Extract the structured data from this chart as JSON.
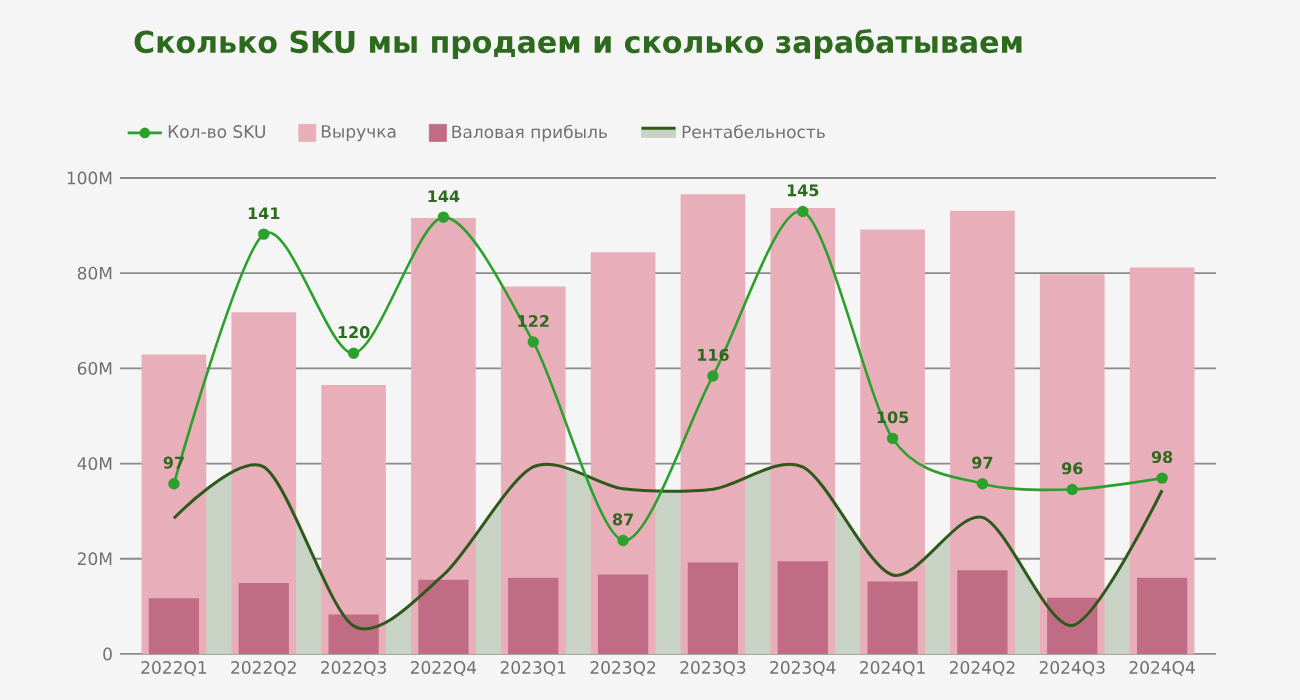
{
  "chart_data": {
    "type": "bar",
    "title": "Сколько SKU мы продаем и сколько зарабатываем",
    "categories": [
      "2022Q1",
      "2022Q2",
      "2022Q3",
      "2022Q4",
      "2023Q1",
      "2023Q2",
      "2023Q3",
      "2023Q4",
      "2024Q1",
      "2024Q2",
      "2024Q3",
      "2024Q4"
    ],
    "series": [
      {
        "name": "Кол-во SKU",
        "type": "line",
        "axis": "y2",
        "color": "#2ca02c",
        "marker": "circle",
        "data_labels": true,
        "values": [
          97,
          141,
          120,
          144,
          122,
          87,
          116,
          145,
          105,
          97,
          96,
          98
        ]
      },
      {
        "name": "Выручка",
        "type": "bar",
        "color": "#e8afba",
        "values": [
          62900000,
          71800000,
          56500000,
          91600000,
          77200000,
          84400000,
          96600000,
          93700000,
          89200000,
          93100000,
          79800000,
          81200000
        ]
      },
      {
        "name": "Валовая прибыль",
        "color": "#c06c84",
        "values": [
          11700000,
          14900000,
          8300000,
          15600000,
          16000000,
          16700000,
          19200000,
          19500000,
          15200000,
          17600000,
          11800000,
          16000000
        ]
      },
      {
        "name": "Рентабельность",
        "type": "area",
        "color": "#2d5a1b",
        "values": [
          28500000,
          39300000,
          5900000,
          16600000,
          39300000,
          34700000,
          34600000,
          39300000,
          16600000,
          28700000,
          6000000,
          34400000
        ]
      }
    ],
    "ylim": [
      0,
      100000000
    ],
    "yticks": [
      0,
      {
        "value": 20000000,
        "label": "20M"
      },
      {
        "value": 40000000,
        "label": "40M"
      },
      {
        "value": 60000000,
        "label": "60M"
      },
      {
        "value": 80000000,
        "label": "80M"
      },
      {
        "value": 100000000,
        "label": "100M"
      }
    ],
    "y2lim": [
      67,
      150.9
    ],
    "grid": "y",
    "legend": "top"
  }
}
